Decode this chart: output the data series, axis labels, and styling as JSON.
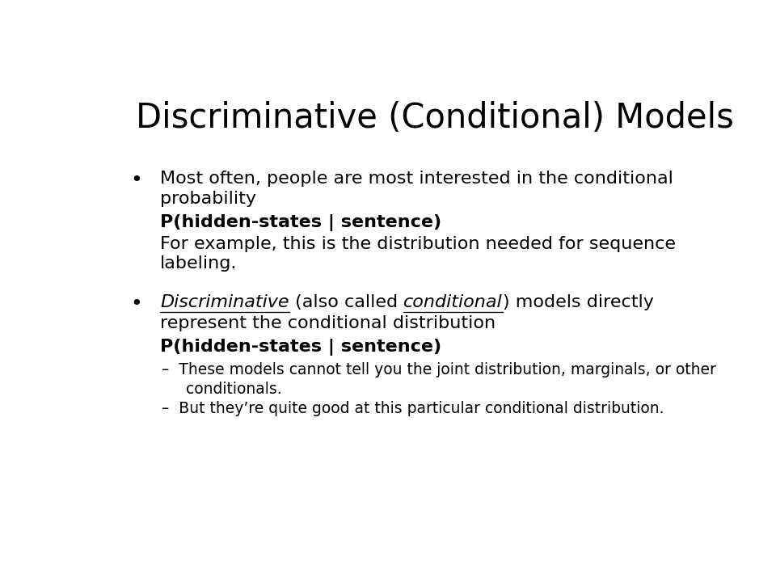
{
  "title": "Discriminative (Conditional) Models",
  "background_color": "#ffffff",
  "text_color": "#000000",
  "title_fontsize": 30,
  "body_fontsize": 16,
  "bold_fontsize": 16,
  "small_fontsize": 13.5,
  "font_family": "Arial",
  "content": {
    "bullet1": {
      "line1": "Most often, people are most interested in the conditional",
      "line2": "probability",
      "bold": "P(hidden-states | sentence)",
      "line3": "For example, this is the distribution needed for sequence",
      "line4": "labeling."
    },
    "bullet2": {
      "part1_italic": "Discriminative",
      "part2_normal": " (also called ",
      "part3_italic": "conditional",
      "part4_normal": ") models directly",
      "line2": "represent the conditional distribution",
      "bold": "P(hidden-states | sentence)",
      "sub1a": "–  These models cannot tell you the joint distribution, marginals, or other",
      "sub1b": "conditionals.",
      "sub2": "–  But they’re quite good at this particular conditional distribution."
    }
  }
}
